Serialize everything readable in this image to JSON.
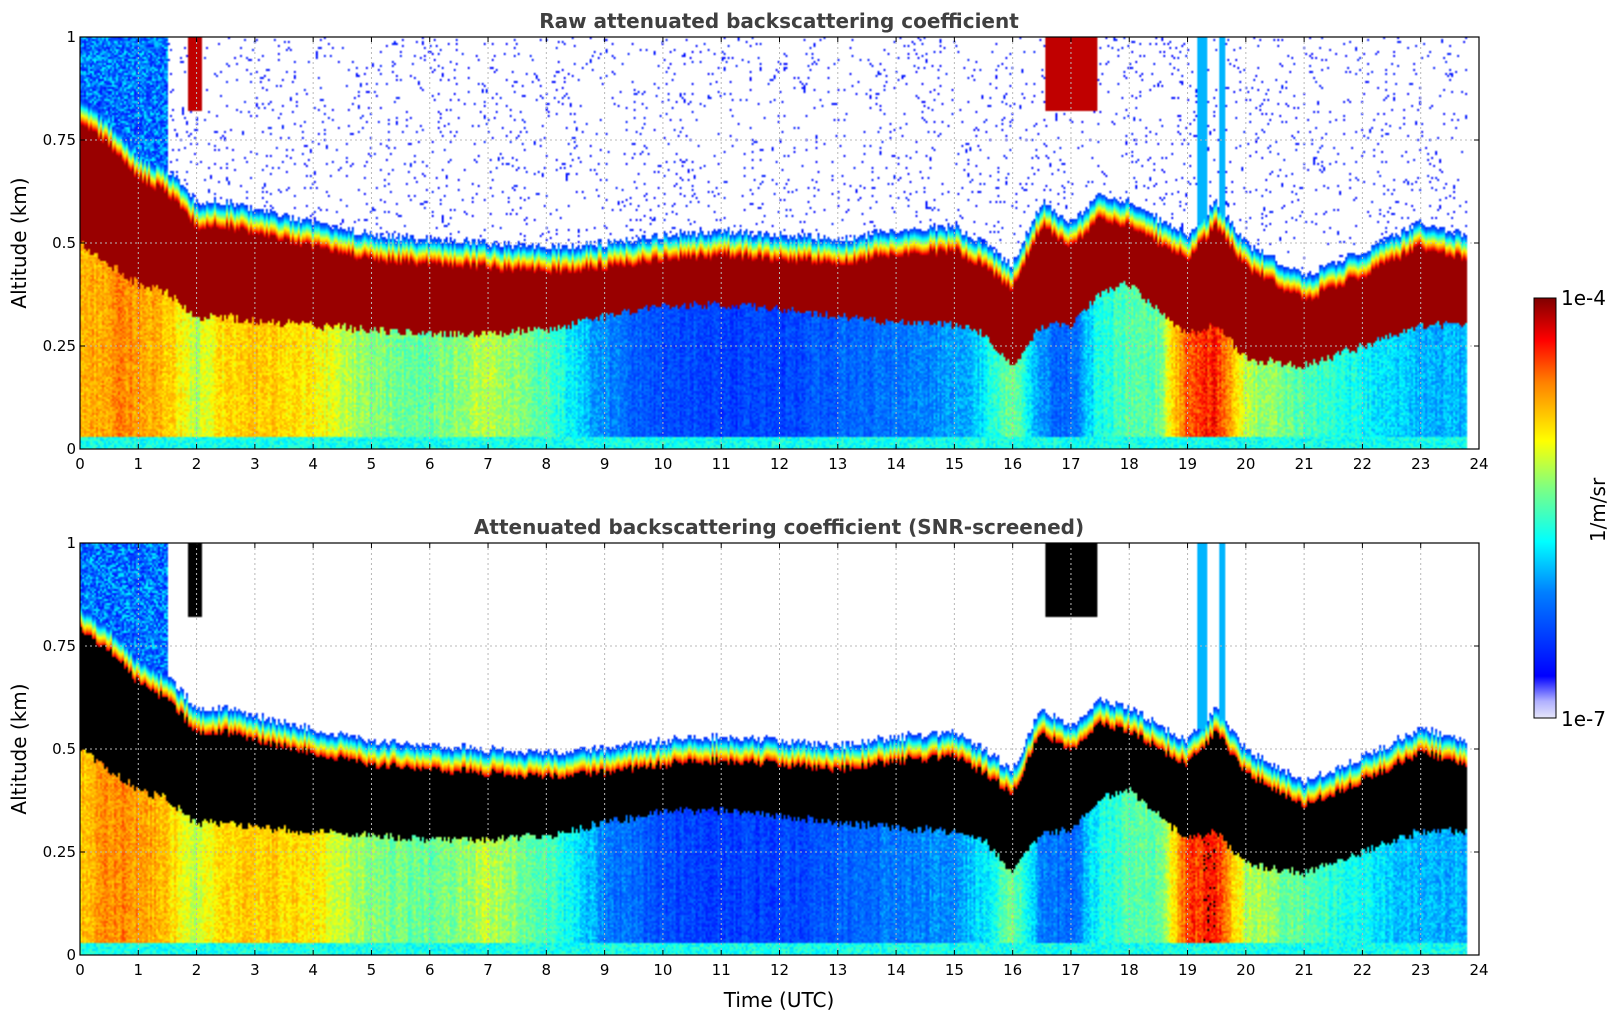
{
  "colors": {
    "low": "#e6e6fa",
    "high": "#800000",
    "screened_core": "#000000",
    "title": "#404040"
  },
  "colormap": "jet",
  "colorbar": {
    "label": "1/m/sr",
    "min_label": "1e-7",
    "max_label": "1e-4",
    "scale": "log",
    "range": [
      1e-07,
      0.0001
    ]
  },
  "chart_data": [
    {
      "type": "heatmap",
      "title": "Raw attenuated backscattering coefficient",
      "xlabel": "",
      "ylabel": "Altitude (km)",
      "xlim": [
        0,
        24
      ],
      "ylim": [
        0,
        1
      ],
      "x_ticks": [
        "0",
        "1",
        "2",
        "3",
        "4",
        "5",
        "6",
        "7",
        "8",
        "9",
        "10",
        "11",
        "12",
        "13",
        "14",
        "15",
        "16",
        "17",
        "18",
        "19",
        "20",
        "21",
        "22",
        "23",
        "24"
      ],
      "y_ticks": [
        "0",
        "0.25",
        "0.5",
        "0.75",
        "1"
      ],
      "grid": true,
      "data_end_time": 23.8,
      "layer_time": [
        0,
        0.5,
        1,
        1.5,
        2,
        2.5,
        3,
        4,
        5,
        6,
        7,
        8,
        9,
        10,
        11,
        12,
        13,
        14,
        15,
        15.5,
        16,
        16.5,
        17,
        17.5,
        18,
        18.5,
        19,
        19.5,
        20,
        21,
        22,
        23,
        23.8
      ],
      "layer_top_km": [
        0.85,
        0.8,
        0.72,
        0.68,
        0.6,
        0.6,
        0.58,
        0.55,
        0.52,
        0.51,
        0.5,
        0.49,
        0.5,
        0.52,
        0.53,
        0.52,
        0.51,
        0.53,
        0.54,
        0.5,
        0.45,
        0.6,
        0.55,
        0.62,
        0.6,
        0.56,
        0.52,
        0.6,
        0.5,
        0.42,
        0.48,
        0.55,
        0.52
      ],
      "layer_base_km": [
        0.5,
        0.45,
        0.4,
        0.38,
        0.32,
        0.32,
        0.31,
        0.3,
        0.29,
        0.28,
        0.28,
        0.29,
        0.32,
        0.35,
        0.35,
        0.34,
        0.32,
        0.31,
        0.3,
        0.28,
        0.2,
        0.3,
        0.3,
        0.38,
        0.4,
        0.34,
        0.28,
        0.3,
        0.22,
        0.2,
        0.25,
        0.3,
        0.3
      ],
      "below_layer_intensity": [
        0.72,
        0.78,
        0.78,
        0.72,
        0.6,
        0.7,
        0.72,
        0.68,
        0.55,
        0.52,
        0.6,
        0.5,
        0.3,
        0.22,
        0.2,
        0.2,
        0.25,
        0.28,
        0.32,
        0.4,
        0.55,
        0.3,
        0.25,
        0.45,
        0.5,
        0.52,
        0.85,
        0.88,
        0.6,
        0.5,
        0.42,
        0.35,
        0.35
      ]
    },
    {
      "type": "heatmap",
      "title": "Attenuated backscattering coefficient (SNR-screened)",
      "xlabel": "Time (UTC)",
      "ylabel": "Altitude (km)",
      "xlim": [
        0,
        24
      ],
      "ylim": [
        0,
        1
      ],
      "x_ticks": [
        "0",
        "1",
        "2",
        "3",
        "4",
        "5",
        "6",
        "7",
        "8",
        "9",
        "10",
        "11",
        "12",
        "13",
        "14",
        "15",
        "16",
        "17",
        "18",
        "19",
        "20",
        "21",
        "22",
        "23",
        "24"
      ],
      "y_ticks": [
        "0",
        "0.25",
        "0.5",
        "0.75",
        "1"
      ],
      "grid": true,
      "data_end_time": 23.8,
      "saturated_core_color": "black"
    }
  ]
}
